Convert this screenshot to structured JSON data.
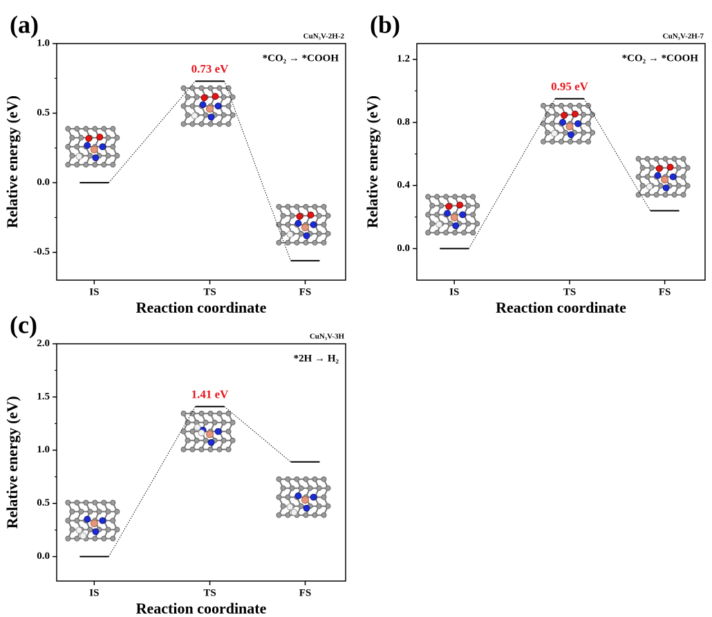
{
  "chart_data": [
    {
      "type": "profile",
      "panel_label": "(a)",
      "subtitle": "CuN₃V-2H-2",
      "annotation": "*CO₂ → *COOH",
      "xlabel": "Reaction coordinate",
      "ylabel": "Relative energy (eV)",
      "categories": [
        "IS",
        "TS",
        "FS"
      ],
      "values": [
        0,
        0.73,
        -0.56
      ],
      "value_labels": [
        null,
        "0.73 eV",
        null
      ],
      "ylim": [
        -0.7,
        1.0
      ],
      "yticks": [
        -0.5,
        {
          "value": 0,
          "label": "0.0"
        },
        0.5,
        {
          "value": 1,
          "label": "1.0"
        }
      ],
      "color": "#000000",
      "label_color": "#e8141b"
    },
    {
      "type": "profile",
      "panel_label": "(b)",
      "subtitle": "CuN₃V-2H-7",
      "annotation": "*CO₂ → *COOH",
      "xlabel": "Reaction coordinate",
      "ylabel": "Relative energy (eV)",
      "categories": [
        "IS",
        "TS",
        "FS"
      ],
      "values": [
        0,
        0.95,
        0.24
      ],
      "value_labels": [
        null,
        "0.95 eV",
        null
      ],
      "ylim": [
        -0.2,
        1.3
      ],
      "yticks": [
        {
          "value": 0,
          "label": "0.0"
        },
        0.4,
        0.8,
        1.2
      ],
      "color": "#000000",
      "label_color": "#e8141b"
    },
    {
      "type": "profile",
      "panel_label": "(c)",
      "subtitle": "CuN₃V-3H",
      "annotation": "*2H → H₂",
      "xlabel": "Reaction coordinate",
      "ylabel": "Relative energy (eV)",
      "categories": [
        "IS",
        "TS",
        "FS"
      ],
      "values": [
        0,
        1.41,
        0.89
      ],
      "value_labels": [
        null,
        "1.41 eV",
        null
      ],
      "ylim": [
        -0.23,
        2.0
      ],
      "yticks": [
        {
          "value": 0,
          "label": "0.0"
        },
        0.5,
        {
          "value": 1,
          "label": "1.0"
        },
        1.5,
        {
          "value": 2,
          "label": "2.0"
        }
      ],
      "color": "#000000",
      "label_color": "#e8141b"
    }
  ]
}
